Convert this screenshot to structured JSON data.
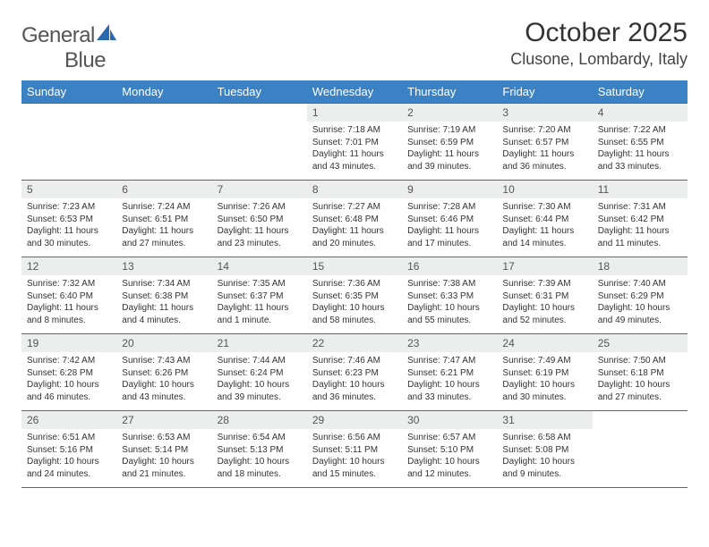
{
  "logo": {
    "text1": "General",
    "text2": "Blue"
  },
  "title": "October 2025",
  "location": "Clusone, Lombardy, Italy",
  "colors": {
    "header_bg": "#3b82c4",
    "header_text": "#ffffff",
    "daynum_bg": "#eceded",
    "rule": "#3b6fa0",
    "text": "#333333",
    "page_bg": "#ffffff"
  },
  "weekdays": [
    "Sunday",
    "Monday",
    "Tuesday",
    "Wednesday",
    "Thursday",
    "Friday",
    "Saturday"
  ],
  "weeks": [
    [
      {
        "empty": true
      },
      {
        "empty": true
      },
      {
        "empty": true
      },
      {
        "num": "1",
        "sunrise": "Sunrise: 7:18 AM",
        "sunset": "Sunset: 7:01 PM",
        "day1": "Daylight: 11 hours",
        "day2": "and 43 minutes."
      },
      {
        "num": "2",
        "sunrise": "Sunrise: 7:19 AM",
        "sunset": "Sunset: 6:59 PM",
        "day1": "Daylight: 11 hours",
        "day2": "and 39 minutes."
      },
      {
        "num": "3",
        "sunrise": "Sunrise: 7:20 AM",
        "sunset": "Sunset: 6:57 PM",
        "day1": "Daylight: 11 hours",
        "day2": "and 36 minutes."
      },
      {
        "num": "4",
        "sunrise": "Sunrise: 7:22 AM",
        "sunset": "Sunset: 6:55 PM",
        "day1": "Daylight: 11 hours",
        "day2": "and 33 minutes."
      }
    ],
    [
      {
        "num": "5",
        "sunrise": "Sunrise: 7:23 AM",
        "sunset": "Sunset: 6:53 PM",
        "day1": "Daylight: 11 hours",
        "day2": "and 30 minutes."
      },
      {
        "num": "6",
        "sunrise": "Sunrise: 7:24 AM",
        "sunset": "Sunset: 6:51 PM",
        "day1": "Daylight: 11 hours",
        "day2": "and 27 minutes."
      },
      {
        "num": "7",
        "sunrise": "Sunrise: 7:26 AM",
        "sunset": "Sunset: 6:50 PM",
        "day1": "Daylight: 11 hours",
        "day2": "and 23 minutes."
      },
      {
        "num": "8",
        "sunrise": "Sunrise: 7:27 AM",
        "sunset": "Sunset: 6:48 PM",
        "day1": "Daylight: 11 hours",
        "day2": "and 20 minutes."
      },
      {
        "num": "9",
        "sunrise": "Sunrise: 7:28 AM",
        "sunset": "Sunset: 6:46 PM",
        "day1": "Daylight: 11 hours",
        "day2": "and 17 minutes."
      },
      {
        "num": "10",
        "sunrise": "Sunrise: 7:30 AM",
        "sunset": "Sunset: 6:44 PM",
        "day1": "Daylight: 11 hours",
        "day2": "and 14 minutes."
      },
      {
        "num": "11",
        "sunrise": "Sunrise: 7:31 AM",
        "sunset": "Sunset: 6:42 PM",
        "day1": "Daylight: 11 hours",
        "day2": "and 11 minutes."
      }
    ],
    [
      {
        "num": "12",
        "sunrise": "Sunrise: 7:32 AM",
        "sunset": "Sunset: 6:40 PM",
        "day1": "Daylight: 11 hours",
        "day2": "and 8 minutes."
      },
      {
        "num": "13",
        "sunrise": "Sunrise: 7:34 AM",
        "sunset": "Sunset: 6:38 PM",
        "day1": "Daylight: 11 hours",
        "day2": "and 4 minutes."
      },
      {
        "num": "14",
        "sunrise": "Sunrise: 7:35 AM",
        "sunset": "Sunset: 6:37 PM",
        "day1": "Daylight: 11 hours",
        "day2": "and 1 minute."
      },
      {
        "num": "15",
        "sunrise": "Sunrise: 7:36 AM",
        "sunset": "Sunset: 6:35 PM",
        "day1": "Daylight: 10 hours",
        "day2": "and 58 minutes."
      },
      {
        "num": "16",
        "sunrise": "Sunrise: 7:38 AM",
        "sunset": "Sunset: 6:33 PM",
        "day1": "Daylight: 10 hours",
        "day2": "and 55 minutes."
      },
      {
        "num": "17",
        "sunrise": "Sunrise: 7:39 AM",
        "sunset": "Sunset: 6:31 PM",
        "day1": "Daylight: 10 hours",
        "day2": "and 52 minutes."
      },
      {
        "num": "18",
        "sunrise": "Sunrise: 7:40 AM",
        "sunset": "Sunset: 6:29 PM",
        "day1": "Daylight: 10 hours",
        "day2": "and 49 minutes."
      }
    ],
    [
      {
        "num": "19",
        "sunrise": "Sunrise: 7:42 AM",
        "sunset": "Sunset: 6:28 PM",
        "day1": "Daylight: 10 hours",
        "day2": "and 46 minutes."
      },
      {
        "num": "20",
        "sunrise": "Sunrise: 7:43 AM",
        "sunset": "Sunset: 6:26 PM",
        "day1": "Daylight: 10 hours",
        "day2": "and 43 minutes."
      },
      {
        "num": "21",
        "sunrise": "Sunrise: 7:44 AM",
        "sunset": "Sunset: 6:24 PM",
        "day1": "Daylight: 10 hours",
        "day2": "and 39 minutes."
      },
      {
        "num": "22",
        "sunrise": "Sunrise: 7:46 AM",
        "sunset": "Sunset: 6:23 PM",
        "day1": "Daylight: 10 hours",
        "day2": "and 36 minutes."
      },
      {
        "num": "23",
        "sunrise": "Sunrise: 7:47 AM",
        "sunset": "Sunset: 6:21 PM",
        "day1": "Daylight: 10 hours",
        "day2": "and 33 minutes."
      },
      {
        "num": "24",
        "sunrise": "Sunrise: 7:49 AM",
        "sunset": "Sunset: 6:19 PM",
        "day1": "Daylight: 10 hours",
        "day2": "and 30 minutes."
      },
      {
        "num": "25",
        "sunrise": "Sunrise: 7:50 AM",
        "sunset": "Sunset: 6:18 PM",
        "day1": "Daylight: 10 hours",
        "day2": "and 27 minutes."
      }
    ],
    [
      {
        "num": "26",
        "sunrise": "Sunrise: 6:51 AM",
        "sunset": "Sunset: 5:16 PM",
        "day1": "Daylight: 10 hours",
        "day2": "and 24 minutes."
      },
      {
        "num": "27",
        "sunrise": "Sunrise: 6:53 AM",
        "sunset": "Sunset: 5:14 PM",
        "day1": "Daylight: 10 hours",
        "day2": "and 21 minutes."
      },
      {
        "num": "28",
        "sunrise": "Sunrise: 6:54 AM",
        "sunset": "Sunset: 5:13 PM",
        "day1": "Daylight: 10 hours",
        "day2": "and 18 minutes."
      },
      {
        "num": "29",
        "sunrise": "Sunrise: 6:56 AM",
        "sunset": "Sunset: 5:11 PM",
        "day1": "Daylight: 10 hours",
        "day2": "and 15 minutes."
      },
      {
        "num": "30",
        "sunrise": "Sunrise: 6:57 AM",
        "sunset": "Sunset: 5:10 PM",
        "day1": "Daylight: 10 hours",
        "day2": "and 12 minutes."
      },
      {
        "num": "31",
        "sunrise": "Sunrise: 6:58 AM",
        "sunset": "Sunset: 5:08 PM",
        "day1": "Daylight: 10 hours",
        "day2": "and 9 minutes."
      },
      {
        "empty": true
      }
    ]
  ]
}
